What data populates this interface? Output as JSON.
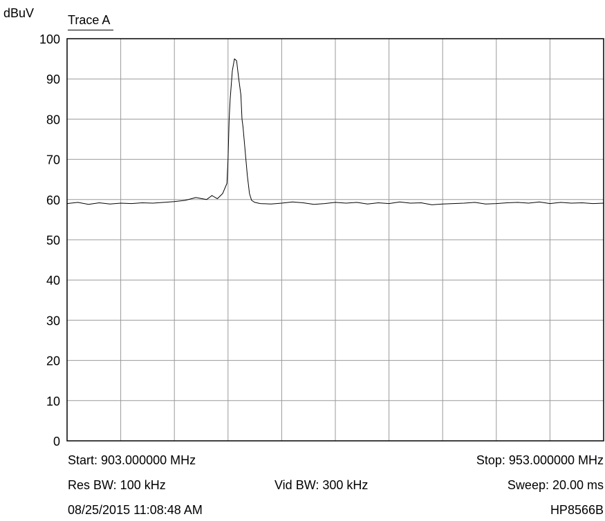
{
  "header": {
    "unit_label": "dBuV",
    "trace_label": "Trace A"
  },
  "footer": {
    "start": "Start: 903.000000 MHz",
    "stop": "Stop: 953.000000 MHz",
    "res_bw": "Res BW: 100 kHz",
    "vid_bw": "Vid BW: 300 kHz",
    "sweep": "Sweep: 20.00 ms",
    "datetime": "08/25/2015 11:08:48 AM",
    "model": "HP8566B"
  },
  "colors": {
    "trace": "#000000",
    "grid": "#999999",
    "frame": "#000000"
  },
  "chart_data": {
    "type": "line",
    "title": "",
    "xlabel": "",
    "ylabel": "dBuV",
    "xlim": [
      903,
      953
    ],
    "ylim": [
      0,
      100
    ],
    "x_divisions": 10,
    "y_ticks": [
      0,
      10,
      20,
      30,
      40,
      50,
      60,
      70,
      80,
      90,
      100
    ],
    "grid": true,
    "series": [
      {
        "name": "Trace A",
        "x": [
          903.0,
          904.0,
          905.0,
          906.0,
          907.0,
          908.0,
          909.0,
          910.0,
          911.0,
          912.0,
          913.0,
          914.0,
          915.0,
          916.0,
          916.5,
          917.0,
          917.5,
          917.9,
          918.0,
          918.1,
          918.2,
          918.4,
          918.6,
          918.8,
          919.0,
          919.2,
          919.3,
          919.4,
          919.6,
          919.8,
          920.0,
          920.2,
          920.5,
          921.0,
          922.0,
          923.0,
          924.0,
          925.0,
          926.0,
          927.0,
          928.0,
          929.0,
          930.0,
          931.0,
          932.0,
          933.0,
          934.0,
          935.0,
          936.0,
          937.0,
          938.0,
          939.0,
          940.0,
          941.0,
          942.0,
          943.0,
          944.0,
          945.0,
          946.0,
          947.0,
          948.0,
          949.0,
          950.0,
          951.0,
          952.0,
          953.0
        ],
        "values": [
          59.0,
          59.3,
          58.8,
          59.2,
          58.9,
          59.1,
          59.0,
          59.2,
          59.1,
          59.3,
          59.5,
          59.8,
          60.5,
          60.0,
          61.0,
          60.2,
          61.5,
          64.0,
          70.0,
          80.0,
          85.0,
          92.0,
          95.0,
          94.5,
          90.0,
          86.0,
          80.0,
          78.0,
          72.0,
          66.0,
          61.5,
          59.8,
          59.3,
          59.0,
          58.9,
          59.1,
          59.4,
          59.2,
          58.8,
          59.0,
          59.3,
          59.1,
          59.3,
          58.9,
          59.2,
          59.0,
          59.4,
          59.1,
          59.2,
          58.7,
          58.9,
          59.0,
          59.1,
          59.3,
          58.9,
          59.0,
          59.2,
          59.3,
          59.1,
          59.4,
          59.0,
          59.3,
          59.1,
          59.2,
          59.0,
          59.1
        ]
      }
    ]
  }
}
